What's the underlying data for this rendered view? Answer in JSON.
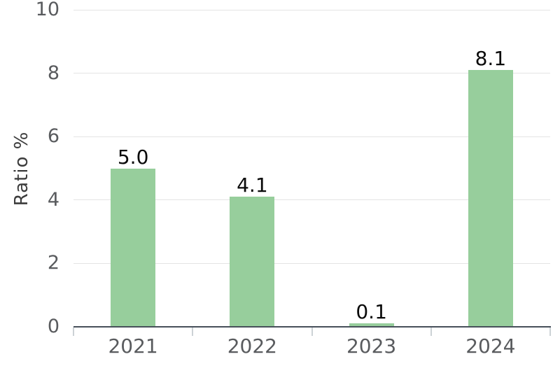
{
  "chart_data": {
    "type": "bar",
    "title": "",
    "categories": [
      "2021",
      "2022",
      "2023",
      "2024"
    ],
    "values": [
      5.0,
      4.1,
      0.1,
      8.1
    ],
    "value_labels": [
      "5.0",
      "4.1",
      "0.1",
      "8.1"
    ],
    "xlabel": "",
    "ylabel": "Ratio %",
    "ylim": [
      0,
      10
    ],
    "yticks": [
      0,
      2,
      4,
      6,
      8,
      10
    ],
    "grid": "horizontal",
    "legend_position": "none",
    "bar_color": "#97ce9c"
  },
  "colors": {
    "background": "#ffffff",
    "bar": "#97ce9c",
    "gridline": "#e4e4e4",
    "axis_line": "#47505a",
    "tick_mark": "#ccd2d6",
    "tick_label": "#595b5e",
    "value_label": "#0a0a0a",
    "axis_title": "#3c3c3c"
  }
}
